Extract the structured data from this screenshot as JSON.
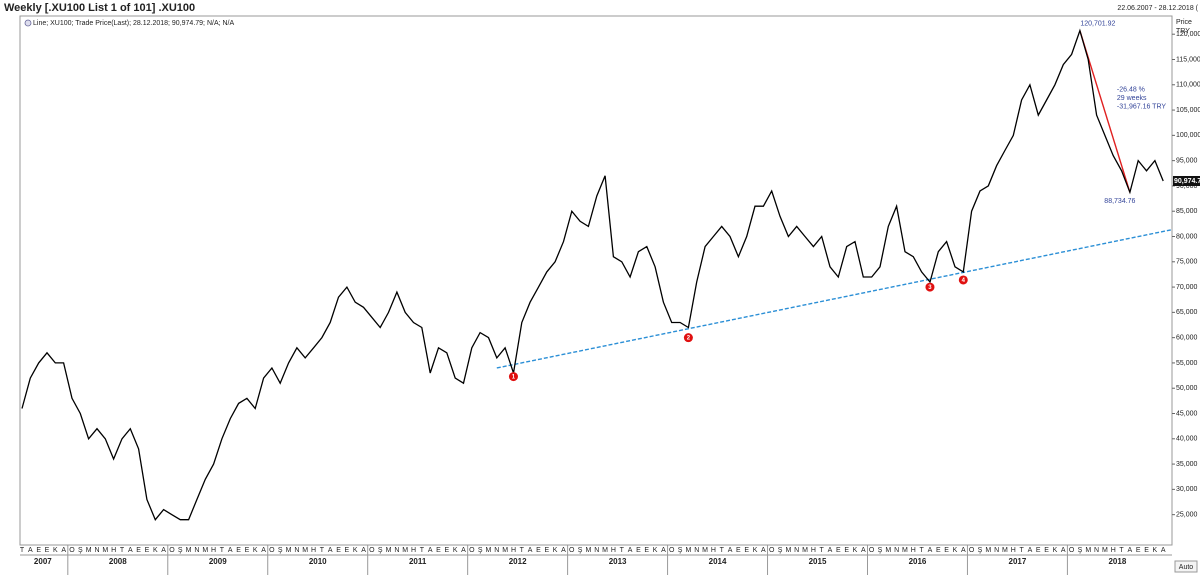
{
  "chart_data": {
    "type": "line",
    "title": "Weekly [.XU100 List 1 of 101] .XU100",
    "date_range": "22.06.2007 - 28.12.2018 (",
    "legend": "Line; XU100; Trade Price(Last); 28.12.2018; 90,974.79; N/A; N/A",
    "y_axis_title": "Price",
    "y_axis_unit": "TRY",
    "scale_mode": "Auto",
    "color": "#000000",
    "x": [
      "2007-07",
      "2007-08",
      "2007-09",
      "2007-10",
      "2007-11",
      "2007-12",
      "2008-01",
      "2008-02",
      "2008-03",
      "2008-04",
      "2008-05",
      "2008-06",
      "2008-07",
      "2008-08",
      "2008-09",
      "2008-10",
      "2008-11",
      "2008-12",
      "2009-01",
      "2009-02",
      "2009-03",
      "2009-04",
      "2009-05",
      "2009-06",
      "2009-07",
      "2009-08",
      "2009-09",
      "2009-10",
      "2009-11",
      "2009-12",
      "2010-01",
      "2010-02",
      "2010-03",
      "2010-04",
      "2010-05",
      "2010-06",
      "2010-07",
      "2010-08",
      "2010-09",
      "2010-10",
      "2010-11",
      "2010-12",
      "2011-01",
      "2011-02",
      "2011-03",
      "2011-04",
      "2011-05",
      "2011-06",
      "2011-07",
      "2011-08",
      "2011-09",
      "2011-10",
      "2011-11",
      "2011-12",
      "2012-01",
      "2012-02",
      "2012-03",
      "2012-04",
      "2012-05",
      "2012-06",
      "2012-07",
      "2012-08",
      "2012-09",
      "2012-10",
      "2012-11",
      "2012-12",
      "2013-01",
      "2013-02",
      "2013-03",
      "2013-04",
      "2013-05",
      "2013-06",
      "2013-07",
      "2013-08",
      "2013-09",
      "2013-10",
      "2013-11",
      "2013-12",
      "2014-01",
      "2014-02",
      "2014-03",
      "2014-04",
      "2014-05",
      "2014-06",
      "2014-07",
      "2014-08",
      "2014-09",
      "2014-10",
      "2014-11",
      "2014-12",
      "2015-01",
      "2015-02",
      "2015-03",
      "2015-04",
      "2015-05",
      "2015-06",
      "2015-07",
      "2015-08",
      "2015-09",
      "2015-10",
      "2015-11",
      "2015-12",
      "2016-01",
      "2016-02",
      "2016-03",
      "2016-04",
      "2016-05",
      "2016-06",
      "2016-07",
      "2016-08",
      "2016-09",
      "2016-10",
      "2016-11",
      "2016-12",
      "2017-01",
      "2017-02",
      "2017-03",
      "2017-04",
      "2017-05",
      "2017-06",
      "2017-07",
      "2017-08",
      "2017-09",
      "2017-10",
      "2017-11",
      "2017-12",
      "2018-01",
      "2018-02",
      "2018-03",
      "2018-04",
      "2018-05",
      "2018-06",
      "2018-07",
      "2018-08",
      "2018-09",
      "2018-10",
      "2018-11",
      "2018-12"
    ],
    "values": [
      46000,
      52000,
      55000,
      57000,
      55000,
      55000,
      48000,
      45000,
      40000,
      42000,
      40000,
      36000,
      40000,
      42000,
      38000,
      28000,
      24000,
      26000,
      25000,
      24000,
      24000,
      28000,
      32000,
      35000,
      40000,
      44000,
      47000,
      48000,
      46000,
      52000,
      54000,
      51000,
      55000,
      58000,
      56000,
      58000,
      60000,
      63000,
      68000,
      70000,
      67000,
      66000,
      64000,
      62000,
      65000,
      69000,
      65000,
      63000,
      62000,
      53000,
      58000,
      57000,
      52000,
      51000,
      58000,
      61000,
      60000,
      56000,
      58000,
      53000,
      63000,
      67000,
      70000,
      73000,
      75000,
      79000,
      85000,
      83000,
      82000,
      88000,
      92000,
      76000,
      75000,
      72000,
      77000,
      78000,
      74000,
      67000,
      63000,
      63000,
      62000,
      71000,
      78000,
      80000,
      82000,
      80000,
      76000,
      80000,
      86000,
      86000,
      89000,
      84000,
      80000,
      82000,
      80000,
      78000,
      80000,
      74000,
      72000,
      78000,
      79000,
      72000,
      72000,
      74000,
      82000,
      86000,
      77000,
      76000,
      73000,
      71000,
      77000,
      79000,
      74000,
      73000,
      85000,
      89000,
      90000,
      94000,
      97000,
      100000,
      107000,
      110000,
      104000,
      107000,
      110000,
      114000,
      116000,
      120701.92,
      115000,
      104000,
      100000,
      96000,
      93000,
      88734.76,
      95000,
      93000,
      95000,
      90974.79
    ],
    "month_initials": [
      "O",
      "Ş",
      "M",
      "N",
      "M",
      "H",
      "T",
      "A",
      "E",
      "E",
      "K",
      "A"
    ],
    "years": [
      "2007",
      "2008",
      "2009",
      "2010",
      "2011",
      "2012",
      "2013",
      "2014",
      "2015",
      "2016",
      "2017",
      "2018"
    ],
    "ylim": [
      19000,
      123600
    ],
    "yticks": [
      {
        "value": 25000,
        "label": "25,000"
      },
      {
        "value": 30000,
        "label": "30,000"
      },
      {
        "value": 35000,
        "label": "35,000"
      },
      {
        "value": 40000,
        "label": "40,000"
      },
      {
        "value": 45000,
        "label": "45,000"
      },
      {
        "value": 50000,
        "label": "50,000"
      },
      {
        "value": 55000,
        "label": "55,000"
      },
      {
        "value": 60000,
        "label": "60,000"
      },
      {
        "value": 65000,
        "label": "65,000"
      },
      {
        "value": 70000,
        "label": "70,000"
      },
      {
        "value": 75000,
        "label": "75,000"
      },
      {
        "value": 80000,
        "label": "80,000"
      },
      {
        "value": 85000,
        "label": "85,000"
      },
      {
        "value": 90000,
        "label": "90,000"
      },
      {
        "value": 95000,
        "label": "95,000"
      },
      {
        "value": 100000,
        "label": "100,000"
      },
      {
        "value": 105000,
        "label": "105,000"
      },
      {
        "value": 110000,
        "label": "110,000"
      },
      {
        "value": 115000,
        "label": "115,000"
      },
      {
        "value": 120000,
        "label": "120,000"
      }
    ],
    "last_value": {
      "value": 90974.79,
      "label": "90,974.79"
    },
    "annotations": [
      {
        "text": "120,701.92",
        "x": "2018-02",
        "value": 120701.92
      },
      {
        "text": "88,734.76",
        "x": "2018-08",
        "value": 88734.76
      }
    ],
    "measure": [
      "-26.48 %",
      "29 weeks",
      "-31,967.16 TRY"
    ],
    "trendlines": [
      {
        "color": "#2b8fd6",
        "dashed": true,
        "points": [
          {
            "x": "2012-04",
            "value": 54000
          },
          {
            "x": "2018-12",
            "value": 81000
          }
        ]
      },
      {
        "color": "#e02020",
        "dashed": false,
        "points": [
          {
            "x": "2018-02",
            "value": 120701.92
          },
          {
            "x": "2018-08",
            "value": 88734.76
          }
        ]
      }
    ],
    "pivots": [
      {
        "label": "1",
        "x": "2012-06",
        "value": 52300
      },
      {
        "label": "2",
        "x": "2014-03",
        "value": 60000
      },
      {
        "label": "3",
        "x": "2016-08",
        "value": 70000
      },
      {
        "label": "4",
        "x": "2016-12",
        "value": 71400
      }
    ]
  }
}
